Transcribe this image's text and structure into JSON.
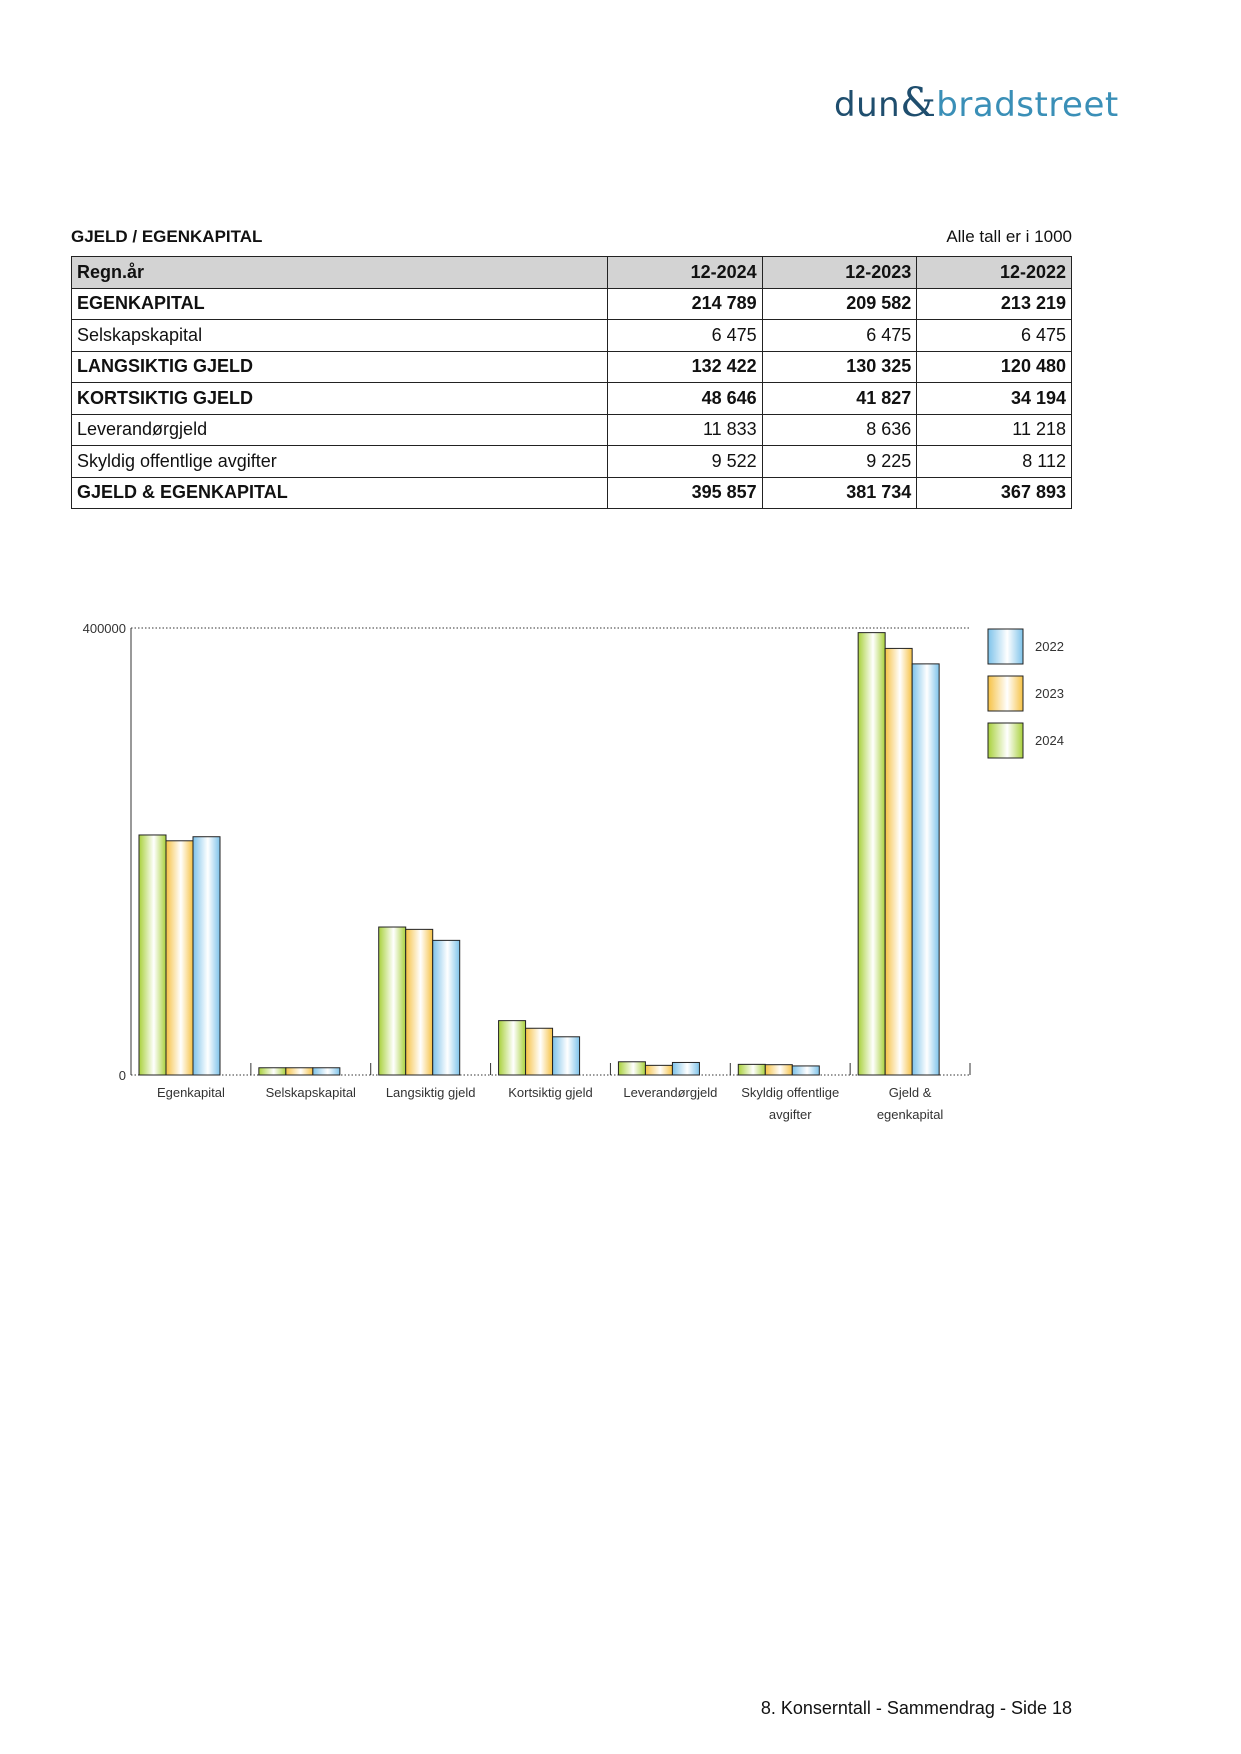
{
  "logo": {
    "left": "dun",
    "amp": "&",
    "right": "bradstreet"
  },
  "section": {
    "title": "GJELD / EGENKAPITAL",
    "units_note": "Alle tall er i 1000"
  },
  "table": {
    "headers": [
      "Regn.år",
      "12-2024",
      "12-2023",
      "12-2022"
    ],
    "rows": [
      {
        "label": "EGENKAPITAL",
        "bold": true,
        "values": [
          "214 789",
          "209 582",
          "213 219"
        ]
      },
      {
        "label": "Selskapskapital",
        "bold": false,
        "values": [
          "6 475",
          "6 475",
          "6 475"
        ]
      },
      {
        "label": "LANGSIKTIG GJELD",
        "bold": true,
        "values": [
          "132 422",
          "130 325",
          "120 480"
        ]
      },
      {
        "label": "KORTSIKTIG GJELD",
        "bold": true,
        "values": [
          "48 646",
          "41 827",
          "34 194"
        ]
      },
      {
        "label": "Leverandørgjeld",
        "bold": false,
        "values": [
          "11 833",
          "8 636",
          "11 218"
        ]
      },
      {
        "label": "Skyldig offentlige avgifter",
        "bold": false,
        "values": [
          "9 522",
          "9 225",
          "8 112"
        ]
      },
      {
        "label": "GJELD & EGENKAPITAL",
        "bold": true,
        "values": [
          "395 857",
          "381 734",
          "367 893"
        ]
      }
    ]
  },
  "chart_data": {
    "type": "bar",
    "categories": [
      [
        "Egenkapital"
      ],
      [
        "Selskapskapital"
      ],
      [
        "Langsiktig gjeld"
      ],
      [
        "Kortsiktig gjeld"
      ],
      [
        "Leverandørgjeld"
      ],
      [
        "Skyldig offentlige",
        "avgifter"
      ],
      [
        "Gjeld &",
        "egenkapital"
      ]
    ],
    "series": [
      {
        "name": "2024",
        "color": "#a9d13c",
        "values": [
          214789,
          6475,
          132422,
          48646,
          11833,
          9522,
          395857
        ]
      },
      {
        "name": "2023",
        "color": "#f6c245",
        "values": [
          209582,
          6475,
          130325,
          41827,
          8636,
          9225,
          381734
        ]
      },
      {
        "name": "2022",
        "color": "#7ec3ea",
        "values": [
          213219,
          6475,
          120480,
          34194,
          11218,
          8112,
          367893
        ]
      }
    ],
    "legend_order": [
      "2022",
      "2023",
      "2024"
    ],
    "legend_placement": "top-right",
    "ylim": [
      0,
      400000
    ],
    "yticks": [
      "0",
      "400000"
    ],
    "grid": false
  },
  "footer": {
    "text": "8. Konserntall - Sammendrag - Side 18"
  }
}
